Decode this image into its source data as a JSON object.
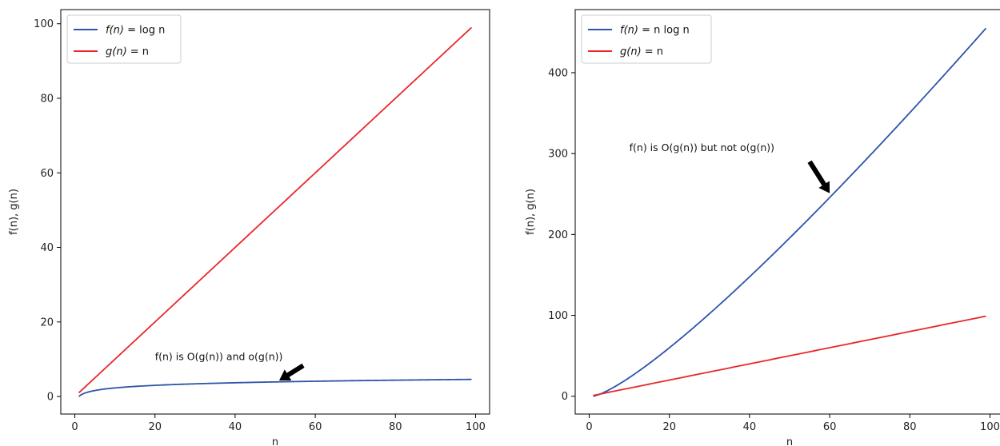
{
  "chart_data": [
    {
      "type": "line",
      "xlabel": "n",
      "ylabel": "f(n), g(n)",
      "xlim": [
        -3.5,
        103.5
      ],
      "ylim": [
        -4.7,
        103.8
      ],
      "xticks": [
        0,
        20,
        40,
        60,
        80,
        100
      ],
      "xtick_labels": [
        "0",
        "20",
        "40",
        "60",
        "80",
        "100"
      ],
      "yticks": [
        0,
        20,
        40,
        60,
        80,
        100
      ],
      "ytick_labels": [
        "0",
        "20",
        "40",
        "60",
        "80",
        "100"
      ],
      "x_range": [
        1,
        99
      ],
      "grid": false,
      "legend_position": "top-left",
      "series": [
        {
          "name": "f(n) = log n",
          "label_func": "f(n)",
          "label_expr": " = log n",
          "func": "log",
          "color": "#2c54a8"
        },
        {
          "name": "g(n) = n",
          "label_func": "g(n)",
          "label_expr": " = n",
          "func": "linear",
          "color": "#e8282b"
        }
      ],
      "annotation": {
        "text": "f(n) is O(g(n)) and o(g(n))",
        "text_x": 20,
        "text_y": 9.8,
        "arrow_tail": [
          57,
          8.3
        ],
        "arrow_head": [
          51,
          4.3
        ]
      }
    },
    {
      "type": "line",
      "xlabel": "n",
      "ylabel": "f(n), g(n)",
      "xlim": [
        -3.5,
        103.5
      ],
      "ylim": [
        -22,
        478
      ],
      "xticks": [
        0,
        20,
        40,
        60,
        80,
        100
      ],
      "xtick_labels": [
        "0",
        "20",
        "40",
        "60",
        "80",
        "100"
      ],
      "yticks": [
        0,
        100,
        200,
        300,
        400
      ],
      "ytick_labels": [
        "0",
        "100",
        "200",
        "300",
        "400"
      ],
      "x_range": [
        1,
        99
      ],
      "grid": false,
      "legend_position": "top-left",
      "series": [
        {
          "name": "f(n) = n log n",
          "label_func": "f(n)",
          "label_expr": " = n log n",
          "func": "nlogn",
          "color": "#2c54a8"
        },
        {
          "name": "g(n) = n",
          "label_func": "g(n)",
          "label_expr": " = n",
          "func": "linear",
          "color": "#e8282b"
        }
      ],
      "annotation": {
        "text": "f(n) is O(g(n)) but not o(g(n))",
        "text_x": 10,
        "text_y": 303,
        "arrow_tail": [
          55,
          290
        ],
        "arrow_head": [
          60,
          251
        ]
      }
    }
  ]
}
